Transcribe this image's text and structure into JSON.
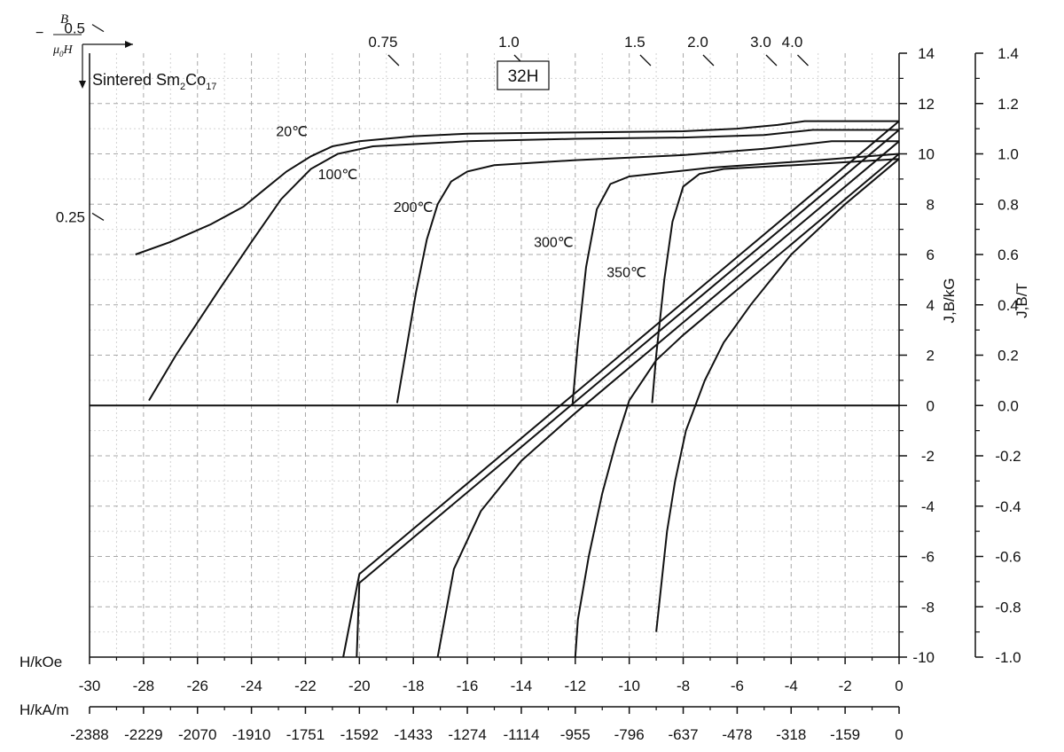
{
  "chart_data": {
    "type": "line",
    "title": "32H",
    "material": {
      "prefix": "Sintered Sm",
      "sub1": "2",
      "mid": "Co",
      "sub2": "17"
    },
    "permeance": {
      "minus": "−",
      "numerator": "B",
      "mu": "μ",
      "mu_sub": "0",
      "h": "H",
      "top_labels": [
        "0.75",
        "1.0",
        "1.5",
        "2.0",
        "3.0",
        "4.0"
      ],
      "left_labels": [
        "0.5",
        "0.25"
      ],
      "top_values": [
        0.75,
        1.0,
        1.5,
        2.0,
        3.0,
        4.0
      ],
      "left_values": [
        0.5,
        0.25
      ]
    },
    "xlabel_koe": "H/kOe",
    "xlabel_kam": "H/kA/m",
    "ylabel_kg": "J,B/kG",
    "ylabel_t": "J,B/T",
    "xlim": [
      -30,
      0
    ],
    "ylim": [
      -10,
      14
    ],
    "grid": true,
    "x_ticks_koe": [
      "-30",
      "-28",
      "-26",
      "-24",
      "-22",
      "-20",
      "-18",
      "-16",
      "-14",
      "-12",
      "-10",
      "-8",
      "-6",
      "-4",
      "-2",
      "0"
    ],
    "x_ticks_kam": [
      "-2388",
      "-2229",
      "-2070",
      "-1910",
      "-1751",
      "-1592",
      "-1433",
      "-1274",
      "-1114",
      "-955",
      "-796",
      "-637",
      "-478",
      "-318",
      "-159",
      "0"
    ],
    "y_ticks_kg": [
      "-10",
      "-8",
      "-6",
      "-4",
      "-2",
      "0",
      "2",
      "4",
      "6",
      "8",
      "10",
      "12",
      "14"
    ],
    "y_ticks_t": [
      "-1.0",
      "-0.8",
      "-0.6",
      "-0.4",
      "-0.2",
      "0.0",
      "0.2",
      "0.4",
      "0.6",
      "0.8",
      "1.0",
      "1.2",
      "1.4"
    ],
    "series": [
      {
        "name": "20℃",
        "J": [
          [
            -28.3,
            6.0
          ],
          [
            -27,
            6.5
          ],
          [
            -25.5,
            7.2
          ],
          [
            -24.3,
            7.9
          ],
          [
            -23.5,
            8.6
          ],
          [
            -22.7,
            9.3
          ],
          [
            -21.8,
            9.9
          ],
          [
            -21,
            10.3
          ],
          [
            -20,
            10.5
          ],
          [
            -18,
            10.7
          ],
          [
            -16,
            10.8
          ],
          [
            -12,
            10.85
          ],
          [
            -8,
            10.9
          ],
          [
            -6,
            11.0
          ],
          [
            -4.5,
            11.15
          ],
          [
            -3.5,
            11.3
          ],
          [
            0,
            11.3
          ]
        ],
        "B": [
          [
            0,
            11.3
          ],
          [
            -4,
            7.7
          ],
          [
            -8,
            4.1
          ],
          [
            -12,
            0.5
          ],
          [
            -16,
            -3.1
          ],
          [
            -20,
            -6.7
          ],
          [
            -20.6,
            -10
          ]
        ]
      },
      {
        "name": "100℃",
        "J": [
          [
            -27.8,
            0.2
          ],
          [
            -26.8,
            2.0
          ],
          [
            -25.2,
            4.6
          ],
          [
            -24,
            6.5
          ],
          [
            -22.9,
            8.2
          ],
          [
            -21.8,
            9.4
          ],
          [
            -20.8,
            10.0
          ],
          [
            -19.5,
            10.3
          ],
          [
            -16,
            10.5
          ],
          [
            -12,
            10.6
          ],
          [
            -8,
            10.65
          ],
          [
            -5,
            10.75
          ],
          [
            -3.2,
            10.95
          ],
          [
            0,
            10.95
          ]
        ],
        "B": [
          [
            0,
            10.95
          ],
          [
            -4,
            7.35
          ],
          [
            -8,
            3.75
          ],
          [
            -12,
            0.15
          ],
          [
            -16,
            -3.45
          ],
          [
            -20,
            -7.05
          ],
          [
            -20.1,
            -10
          ]
        ]
      },
      {
        "name": "200℃",
        "J": [
          [
            -18.6,
            0.1
          ],
          [
            -18.3,
            2.0
          ],
          [
            -17.9,
            4.5
          ],
          [
            -17.5,
            6.6
          ],
          [
            -17.1,
            8.0
          ],
          [
            -16.6,
            8.9
          ],
          [
            -16,
            9.3
          ],
          [
            -15,
            9.55
          ],
          [
            -12,
            9.75
          ],
          [
            -8,
            9.95
          ],
          [
            -5,
            10.2
          ],
          [
            -2.5,
            10.5
          ],
          [
            0,
            10.5
          ]
        ],
        "B": [
          [
            0,
            10.5
          ],
          [
            -4,
            6.9
          ],
          [
            -8,
            3.3
          ],
          [
            -12,
            -0.3
          ],
          [
            -14,
            -2.2
          ],
          [
            -15.5,
            -4.2
          ],
          [
            -16.5,
            -6.5
          ],
          [
            -17.1,
            -10
          ]
        ]
      },
      {
        "name": "300℃",
        "J": [
          [
            -12.1,
            0.1
          ],
          [
            -11.9,
            2.5
          ],
          [
            -11.6,
            5.5
          ],
          [
            -11.2,
            7.8
          ],
          [
            -10.7,
            8.8
          ],
          [
            -10,
            9.1
          ],
          [
            -7,
            9.45
          ],
          [
            -3,
            9.75
          ],
          [
            0,
            10.0
          ]
        ],
        "B": [
          [
            0,
            10.0
          ],
          [
            -4,
            6.4
          ],
          [
            -8,
            2.8
          ],
          [
            -9,
            1.8
          ],
          [
            -10,
            0.2
          ],
          [
            -10.5,
            -1.5
          ],
          [
            -11,
            -3.5
          ],
          [
            -11.5,
            -6
          ],
          [
            -11.9,
            -8.5
          ],
          [
            -12,
            -10
          ]
        ]
      },
      {
        "name": "350℃",
        "J": [
          [
            -9.15,
            0.1
          ],
          [
            -9.0,
            2.0
          ],
          [
            -8.7,
            5.0
          ],
          [
            -8.4,
            7.3
          ],
          [
            -8,
            8.7
          ],
          [
            -7.4,
            9.2
          ],
          [
            -6.5,
            9.4
          ],
          [
            -3,
            9.6
          ],
          [
            0,
            9.8
          ]
        ],
        "B": [
          [
            0,
            9.8
          ],
          [
            -2,
            8.0
          ],
          [
            -4,
            6.0
          ],
          [
            -5.5,
            4.0
          ],
          [
            -6.5,
            2.5
          ],
          [
            -7.2,
            1.0
          ],
          [
            -7.9,
            -1.0
          ],
          [
            -8.3,
            -3.0
          ],
          [
            -8.6,
            -5.0
          ],
          [
            -8.8,
            -7.0
          ],
          [
            -9.0,
            -9.0
          ]
        ]
      }
    ]
  }
}
